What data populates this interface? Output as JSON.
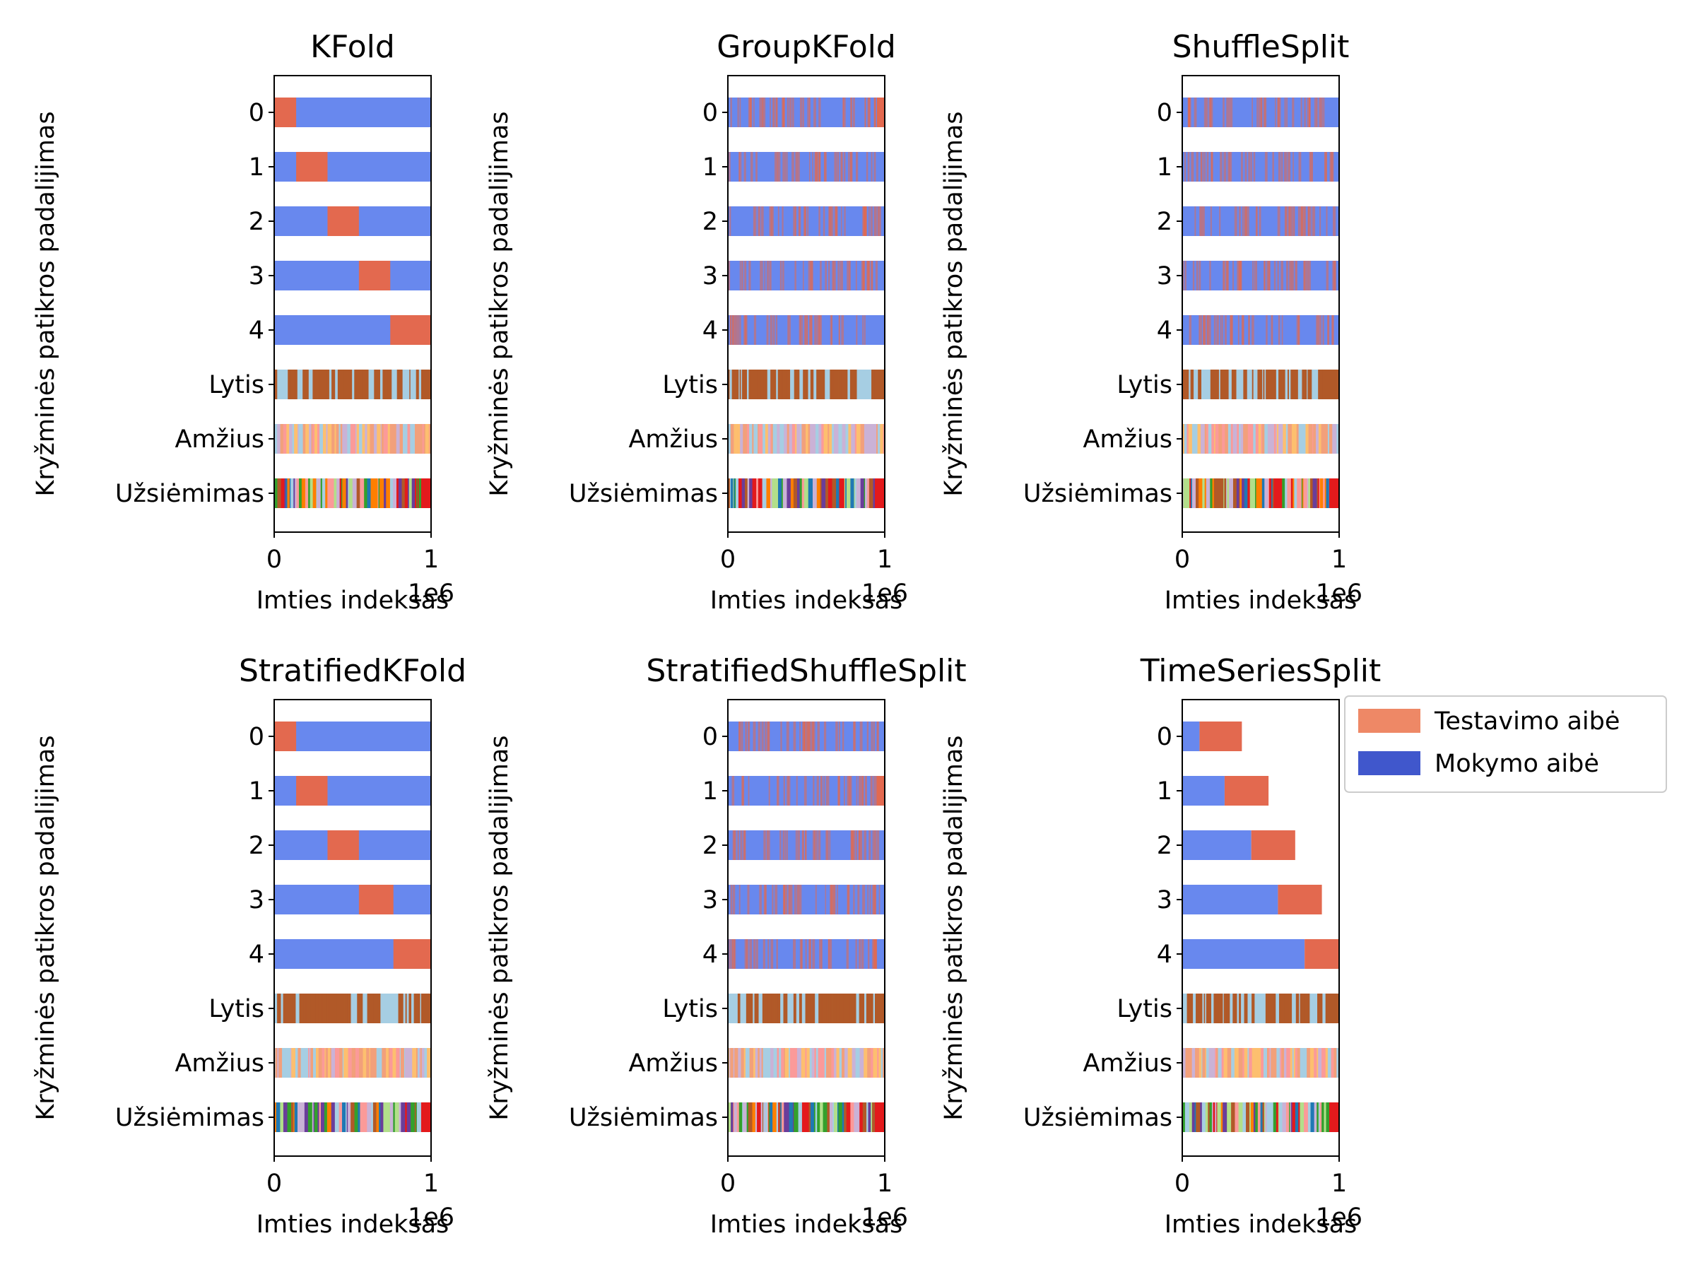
{
  "colors": {
    "train": "#6888ee",
    "test": "#e3694f",
    "legend_test": "#ee8866",
    "legend_train": "#4057cc",
    "lytis_a": "#b15928",
    "lytis_b": "#a6cee3",
    "amzius": [
      "#fb9a99",
      "#fdbf6f",
      "#cab2d6",
      "#a6cee3",
      "#f2a07b"
    ],
    "uzsiemimas": [
      "#6a3d9a",
      "#33a02c",
      "#e31a1c",
      "#1f78b4",
      "#ff7f00",
      "#b2df8a",
      "#fb9a99",
      "#cab2d6",
      "#b15928",
      "#a6cee3"
    ]
  },
  "legend": {
    "test_label": "Testavimo aibė",
    "train_label": "Mokymo aibė"
  },
  "chart_data": [
    {
      "type": "bar",
      "title": "KFold",
      "xlabel": "Imties indeksas",
      "ylabel": "Kryžminės patikros padalijimas",
      "x_offset_text": "1e6",
      "xlim": [
        0,
        1
      ],
      "xticks": [
        "0",
        "1"
      ],
      "categories": [
        "0",
        "1",
        "2",
        "3",
        "4",
        "Lytis",
        "Amžius",
        "Užsiėmimas"
      ],
      "folds": [
        {
          "test": [
            [
              0.0,
              0.14
            ]
          ]
        },
        {
          "test": [
            [
              0.14,
              0.34
            ]
          ]
        },
        {
          "test": [
            [
              0.34,
              0.54
            ]
          ]
        },
        {
          "test": [
            [
              0.54,
              0.74
            ]
          ]
        },
        {
          "test": [
            [
              0.74,
              1.0
            ]
          ]
        }
      ]
    },
    {
      "type": "bar",
      "title": "GroupKFold",
      "xlabel": "Imties indeksas",
      "ylabel": "Kryžminės patikros padalijimas",
      "x_offset_text": "1e6",
      "xlim": [
        0,
        1
      ],
      "xticks": [
        "0",
        "1"
      ],
      "categories": [
        "0",
        "1",
        "2",
        "3",
        "4",
        "Lytis",
        "Amžius",
        "Užsiėmimas"
      ],
      "folds": [
        {
          "test": [
            [
              0.95,
              1.0
            ]
          ],
          "scatter": true
        },
        {
          "test": [],
          "scatter": true
        },
        {
          "test": [],
          "scatter": true
        },
        {
          "test": [],
          "scatter": true
        },
        {
          "test": [],
          "scatter": true
        }
      ]
    },
    {
      "type": "bar",
      "title": "ShuffleSplit",
      "xlabel": "Imties indeksas",
      "ylabel": "Kryžminės patikros padalijimas",
      "x_offset_text": "1e6",
      "xlim": [
        0,
        1
      ],
      "xticks": [
        "0",
        "1"
      ],
      "categories": [
        "0",
        "1",
        "2",
        "3",
        "4",
        "Lytis",
        "Amžius",
        "Užsiėmimas"
      ],
      "folds": [
        {
          "test": [],
          "scatter": true
        },
        {
          "test": [],
          "scatter": true
        },
        {
          "test": [],
          "scatter": true
        },
        {
          "test": [],
          "scatter": true
        },
        {
          "test": [],
          "scatter": true
        }
      ]
    },
    {
      "type": "bar",
      "title": "StratifiedKFold",
      "xlabel": "Imties indeksas",
      "ylabel": "Kryžminės patikros padalijimas",
      "x_offset_text": "1e6",
      "xlim": [
        0,
        1
      ],
      "xticks": [
        "0",
        "1"
      ],
      "categories": [
        "0",
        "1",
        "2",
        "3",
        "4",
        "Lytis",
        "Amžius",
        "Užsiėmimas"
      ],
      "folds": [
        {
          "test": [
            [
              0.0,
              0.14
            ]
          ]
        },
        {
          "test": [
            [
              0.14,
              0.34
            ]
          ]
        },
        {
          "test": [
            [
              0.34,
              0.54
            ]
          ]
        },
        {
          "test": [
            [
              0.54,
              0.76
            ]
          ]
        },
        {
          "test": [
            [
              0.76,
              1.0
            ]
          ]
        }
      ]
    },
    {
      "type": "bar",
      "title": "StratifiedShuffleSplit",
      "xlabel": "Imties indeksas",
      "ylabel": "Kryžminės patikros padalijimas",
      "x_offset_text": "1e6",
      "xlim": [
        0,
        1
      ],
      "xticks": [
        "0",
        "1"
      ],
      "categories": [
        "0",
        "1",
        "2",
        "3",
        "4",
        "Lytis",
        "Amžius",
        "Užsiėmimas"
      ],
      "folds": [
        {
          "test": [],
          "scatter": true
        },
        {
          "test": [
            [
              0.95,
              1.0
            ]
          ],
          "scatter": true
        },
        {
          "test": [],
          "scatter": true
        },
        {
          "test": [],
          "scatter": true
        },
        {
          "test": [],
          "scatter": true
        }
      ]
    },
    {
      "type": "bar",
      "title": "TimeSeriesSplit",
      "xlabel": "Imties indeksas",
      "ylabel": "Kryžminės patikros padalijimas",
      "x_offset_text": "1e6",
      "xlim": [
        0,
        1
      ],
      "xticks": [
        "0",
        "1"
      ],
      "categories": [
        "0",
        "1",
        "2",
        "3",
        "4",
        "Lytis",
        "Amžius",
        "Užsiėmimas"
      ],
      "folds": [
        {
          "train": [
            [
              0.0,
              0.11
            ]
          ],
          "test": [
            [
              0.11,
              0.38
            ]
          ]
        },
        {
          "train": [
            [
              0.0,
              0.27
            ]
          ],
          "test": [
            [
              0.27,
              0.55
            ]
          ]
        },
        {
          "train": [
            [
              0.0,
              0.44
            ]
          ],
          "test": [
            [
              0.44,
              0.72
            ]
          ]
        },
        {
          "train": [
            [
              0.0,
              0.61
            ]
          ],
          "test": [
            [
              0.61,
              0.89
            ]
          ]
        },
        {
          "train": [
            [
              0.0,
              0.78
            ]
          ],
          "test": [
            [
              0.78,
              1.0
            ]
          ]
        }
      ],
      "has_legend": true
    }
  ]
}
